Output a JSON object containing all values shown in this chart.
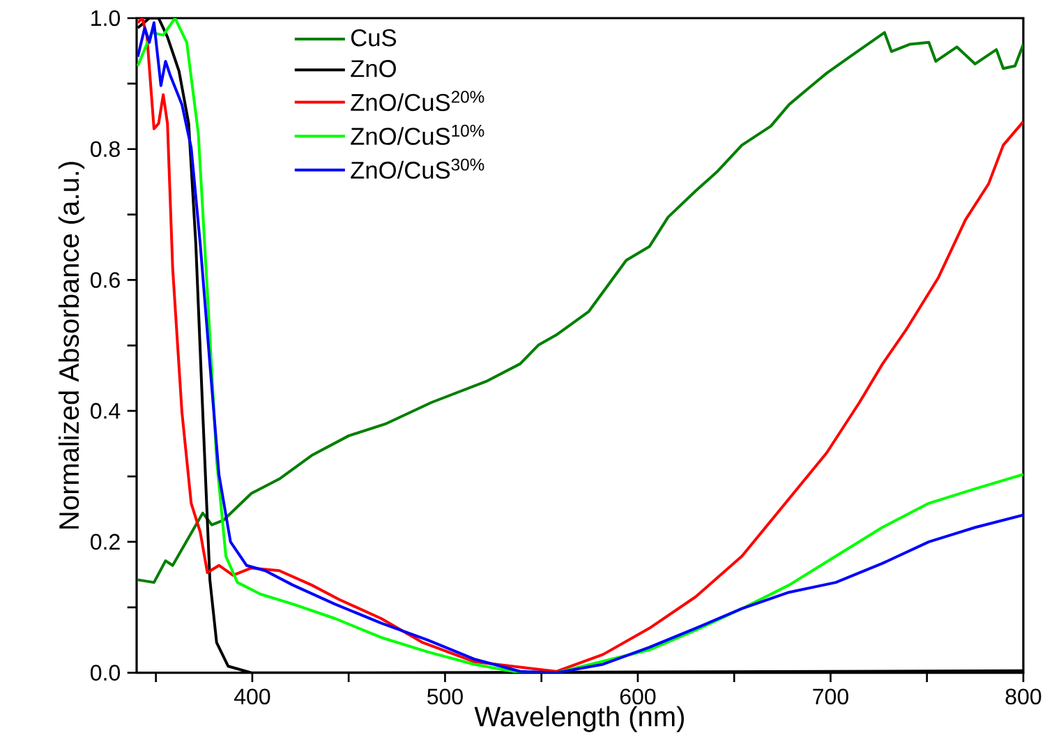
{
  "chart_data": {
    "type": "line",
    "xlabel": "Wavelength (nm)",
    "ylabel": "Normalized Absorbance (a.u.)",
    "xlim": [
      340,
      800
    ],
    "ylim": [
      0,
      1
    ],
    "xticks": [
      {
        "value": 350,
        "label": null
      },
      400,
      {
        "value": 450,
        "label": null
      },
      500,
      {
        "value": 550,
        "label": null
      },
      600,
      {
        "value": 650,
        "label": null
      },
      700,
      {
        "value": 750,
        "label": null
      },
      800
    ],
    "yticks": [
      {
        "value": 0,
        "label": "0.0"
      },
      {
        "value": 0.1,
        "label": null
      },
      0.2,
      {
        "value": 0.3,
        "label": null
      },
      0.4,
      {
        "value": 0.5,
        "label": null
      },
      0.6,
      {
        "value": 0.7,
        "label": null
      },
      0.8,
      {
        "value": 0.9,
        "label": null
      },
      {
        "value": 1,
        "label": "1.0"
      }
    ],
    "grid": false,
    "legend": "top left",
    "marker": "none",
    "line_style": "solid",
    "series": [
      {
        "name": "CuS",
        "color": "#007f00",
        "x": [
          340.6,
          349,
          355,
          358.7,
          374.3,
          379,
          385,
          399.5,
          414,
          430.8,
          450,
          469,
          493,
          522,
          539,
          548.6,
          557.7,
          574.6,
          594,
          606,
          615.7,
          630,
          641,
          654,
          669,
          678.5,
          689,
          698,
          710,
          728,
          731.6,
          741,
          751,
          754.6,
          765.5,
          775,
          786,
          789.6,
          795.7,
          800
        ],
        "values": [
          0.142,
          0.138,
          0.171,
          0.164,
          0.244,
          0.226,
          0.233,
          0.274,
          0.296,
          0.332,
          0.362,
          0.38,
          0.413,
          0.446,
          0.472,
          0.501,
          0.516,
          0.552,
          0.63,
          0.651,
          0.696,
          0.736,
          0.765,
          0.806,
          0.835,
          0.868,
          0.894,
          0.916,
          0.941,
          0.978,
          0.949,
          0.96,
          0.963,
          0.934,
          0.956,
          0.93,
          0.952,
          0.923,
          0.927,
          0.96
        ]
      },
      {
        "name": "ZnO",
        "color": "#000000",
        "x": [
          340.6,
          346.6,
          351.4,
          356,
          362,
          367,
          370.7,
          374.3,
          378,
          381.5,
          387.5,
          399.5,
          455,
          800
        ],
        "values": [
          0.985,
          1.0,
          1.0,
          0.971,
          0.919,
          0.839,
          0.655,
          0.398,
          0.142,
          0.046,
          0.01,
          0,
          0,
          0.003
        ]
      },
      {
        "name": "ZnO/CuS$^{20%}$",
        "color": "#ff0000",
        "x": [
          340.6,
          343,
          345.4,
          349,
          351.4,
          353.8,
          356,
          358.7,
          363.5,
          368.3,
          373,
          376.7,
          382.7,
          390,
          399.5,
          414,
          430.8,
          445,
          466.8,
          488.5,
          515,
          557.7,
          582,
          606,
          630,
          654,
          678.5,
          698,
          715,
          727,
          739,
          756,
          770,
          782,
          789.6,
          800
        ],
        "values": [
          0.993,
          1.0,
          0.971,
          0.831,
          0.839,
          0.883,
          0.839,
          0.618,
          0.398,
          0.259,
          0.215,
          0.153,
          0.164,
          0.149,
          0.16,
          0.156,
          0.134,
          0.112,
          0.083,
          0.046,
          0.017,
          0.002,
          0.028,
          0.068,
          0.116,
          0.178,
          0.266,
          0.336,
          0.413,
          0.472,
          0.523,
          0.604,
          0.692,
          0.747,
          0.806,
          0.842
        ]
      },
      {
        "name": "ZnO/CuS$^{10%}$",
        "color": "#00ff00",
        "x": [
          340.6,
          347.8,
          353.8,
          359.9,
          366,
          372,
          376.7,
          381.5,
          386.3,
          392.3,
          404.3,
          421,
          442.8,
          466.8,
          490.9,
          515,
          539,
          557.7,
          606,
          630,
          654,
          678.5,
          702.7,
          726.8,
          751,
          775,
          800
        ],
        "values": [
          0.927,
          0.978,
          0.974,
          1.0,
          0.963,
          0.824,
          0.582,
          0.325,
          0.178,
          0.138,
          0.12,
          0.105,
          0.083,
          0.054,
          0.032,
          0.013,
          0,
          0,
          0.035,
          0.065,
          0.098,
          0.134,
          0.178,
          0.222,
          0.259,
          0.281,
          0.303
        ]
      },
      {
        "name": "ZnO/CuS$^{30%}$",
        "color": "#0000ff",
        "x": [
          340.6,
          344.2,
          346.6,
          349,
          352.6,
          355,
          357.5,
          363.5,
          368.3,
          373,
          378,
          382.7,
          388.7,
          397,
          406.7,
          421,
          442.8,
          466.8,
          490.9,
          515,
          539,
          557.7,
          582,
          606,
          630,
          654,
          678.5,
          702.7,
          726.8,
          751,
          775,
          800
        ],
        "values": [
          0.941,
          0.985,
          0.963,
          0.993,
          0.897,
          0.934,
          0.912,
          0.868,
          0.802,
          0.655,
          0.472,
          0.303,
          0.2,
          0.164,
          0.156,
          0.134,
          0.105,
          0.076,
          0.05,
          0.021,
          0.002,
          0,
          0.013,
          0.039,
          0.068,
          0.098,
          0.123,
          0.138,
          0.167,
          0.2,
          0.222,
          0.241
        ]
      }
    ]
  }
}
